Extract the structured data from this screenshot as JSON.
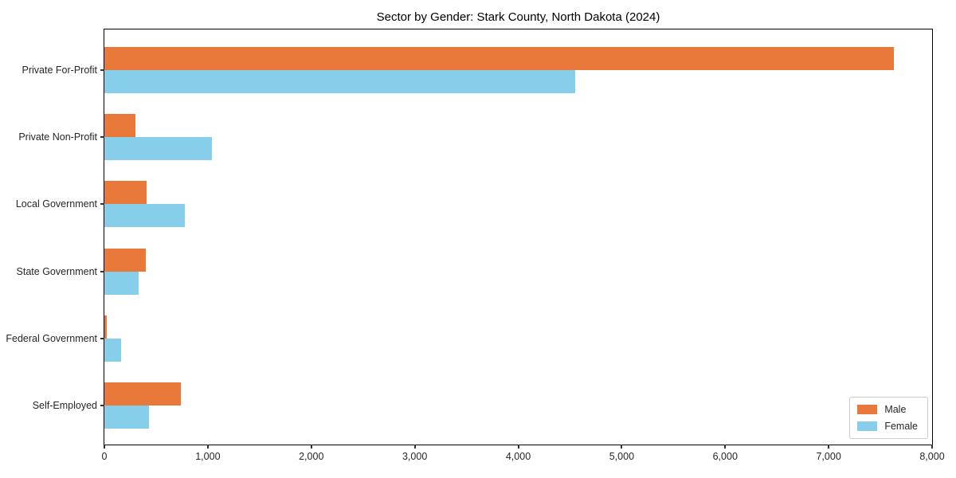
{
  "chart_data": {
    "type": "bar",
    "orientation": "horizontal",
    "title": "Sector by Gender: Stark County, North Dakota (2024)",
    "categories": [
      "Private For-Profit",
      "Private Non-Profit",
      "Local Government",
      "State Government",
      "Federal Government",
      "Self-Employed"
    ],
    "series": [
      {
        "name": "Male",
        "color": "#E8793A",
        "values": [
          7630,
          300,
          410,
          400,
          20,
          740
        ]
      },
      {
        "name": "Female",
        "color": "#87CEEB",
        "values": [
          4550,
          1040,
          780,
          330,
          165,
          430
        ]
      }
    ],
    "xlabel": "",
    "ylabel": "",
    "xlim": [
      0,
      8000
    ],
    "xticks": [
      {
        "value": 0,
        "label": "0"
      },
      {
        "value": 1000,
        "label": "1,000"
      },
      {
        "value": 2000,
        "label": "2,000"
      },
      {
        "value": 3000,
        "label": "3,000"
      },
      {
        "value": 4000,
        "label": "4,000"
      },
      {
        "value": 5000,
        "label": "5,000"
      },
      {
        "value": 6000,
        "label": "6,000"
      },
      {
        "value": 7000,
        "label": "7,000"
      },
      {
        "value": 8000,
        "label": "8,000"
      }
    ],
    "grid": false,
    "legend_position": "lower right"
  }
}
